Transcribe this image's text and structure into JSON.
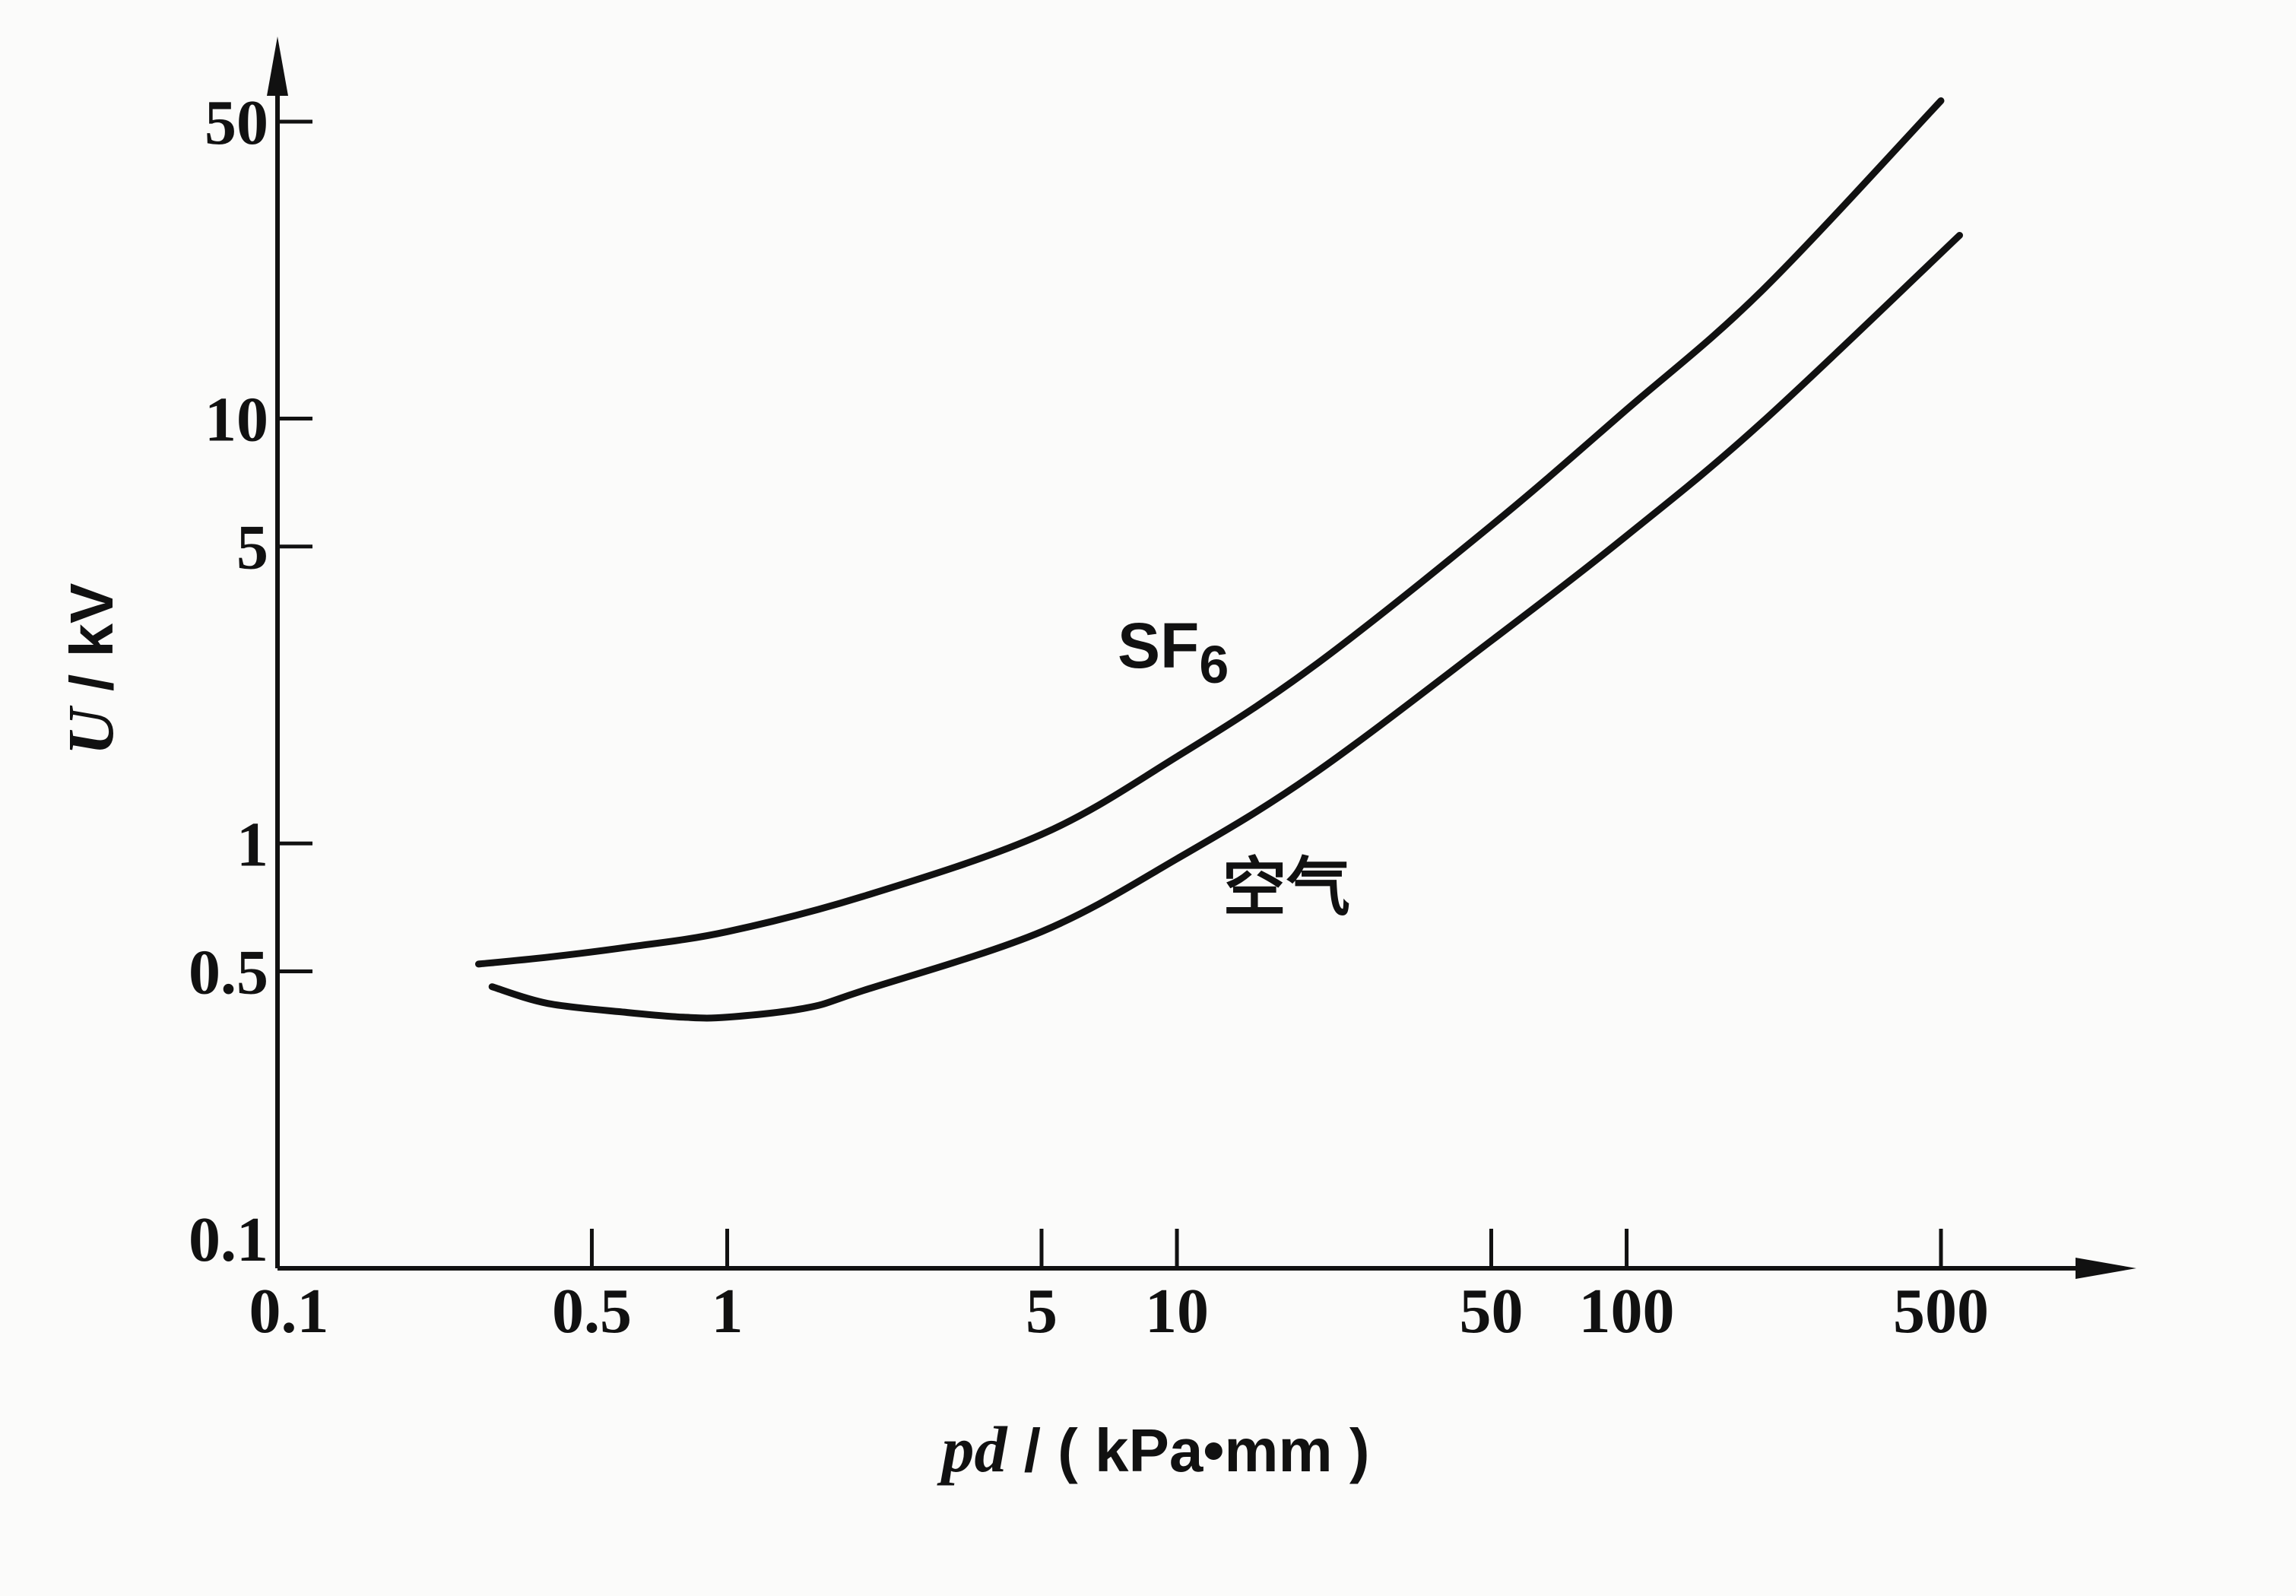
{
  "chart_data": {
    "type": "line",
    "xlabel_var": "pd",
    "xlabel_unit": " / ( kPa•mm )",
    "ylabel_var": "U",
    "ylabel_unit": " / kV",
    "xscale": "log",
    "yscale": "log",
    "xlim": [
      0.1,
      1200
    ],
    "ylim": [
      0.1,
      80
    ],
    "x_ticks": [
      0.1,
      0.5,
      1,
      5,
      10,
      50,
      100,
      500
    ],
    "x_tick_labels": [
      "0.1",
      "0.5",
      "1",
      "5",
      "10",
      "50",
      "100",
      "500"
    ],
    "y_ticks": [
      0.1,
      0.5,
      1,
      5,
      10,
      50
    ],
    "y_tick_labels": [
      "0.1",
      "0.5",
      "1",
      "5",
      "10",
      "50"
    ],
    "grid": false,
    "series": [
      {
        "name": "SF6",
        "label_main": "SF",
        "label_sub": "6",
        "x": [
          0.28,
          0.4,
          0.6,
          1,
          2,
          5,
          10,
          20,
          50,
          100,
          200,
          500
        ],
        "y": [
          0.52,
          0.54,
          0.57,
          0.62,
          0.75,
          1.05,
          1.6,
          2.6,
          5.6,
          10.5,
          20,
          56
        ]
      },
      {
        "name": "空气",
        "label_main": "空气",
        "label_sub": "",
        "x": [
          0.3,
          0.4,
          0.6,
          0.8,
          1,
          1.5,
          2,
          5,
          10,
          20,
          50,
          100,
          200,
          550
        ],
        "y": [
          0.46,
          0.42,
          0.4,
          0.39,
          0.39,
          0.41,
          0.45,
          0.62,
          0.92,
          1.45,
          3.0,
          5.3,
          9.8,
          27
        ]
      }
    ]
  }
}
